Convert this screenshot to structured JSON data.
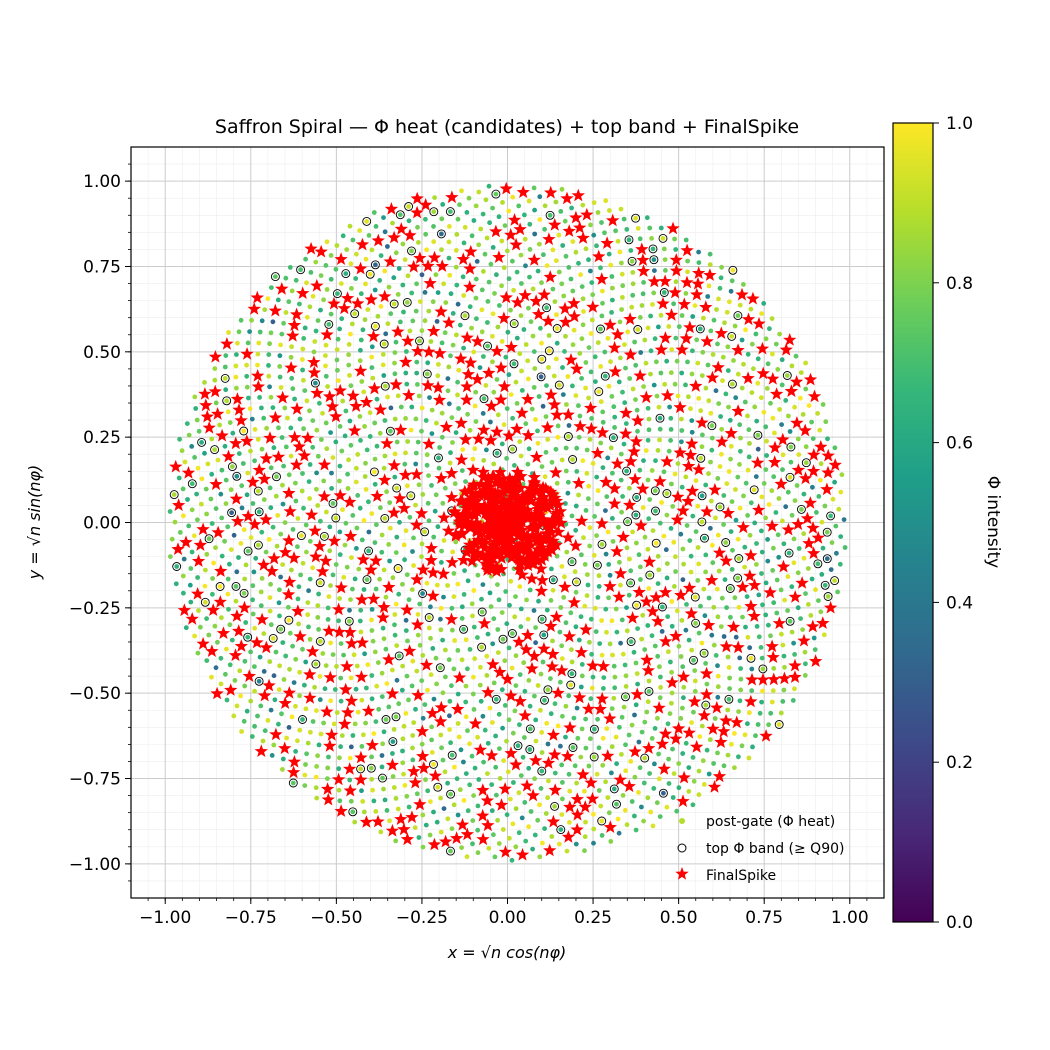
{
  "chart_data": {
    "type": "scatter",
    "title": "Saffron Spiral — Φ heat (candidates) + top band + FinalSpike",
    "xlabel": "x = √n cos(nφ)",
    "ylabel": "y = √n sin(nφ)",
    "xlim": [
      -1.1,
      1.1
    ],
    "ylim": [
      -1.1,
      1.1
    ],
    "xticks": [
      -1.0,
      -0.75,
      -0.5,
      -0.25,
      0.0,
      0.25,
      0.5,
      0.75,
      1.0
    ],
    "yticks": [
      -1.0,
      -0.75,
      -0.5,
      -0.25,
      0.0,
      0.25,
      0.5,
      0.75,
      1.0
    ],
    "xtick_labels": [
      "−1.00",
      "−0.75",
      "−0.50",
      "−0.25",
      "0.00",
      "0.25",
      "0.50",
      "0.75",
      "1.00"
    ],
    "ytick_labels": [
      "−1.00",
      "−0.75",
      "−0.50",
      "−0.25",
      "0.00",
      "0.25",
      "0.50",
      "0.75",
      "1.00"
    ],
    "grid": true,
    "minor_grid": true,
    "legend_position": "lower-right",
    "series": [
      {
        "name": "post-gate (Φ heat)",
        "marker": "dot",
        "colormap": "viridis",
        "approx_points": 3000,
        "generator": "Vogel spiral r = sqrt(i/N), angle = i*golden-angle; color = Φ intensity (mostly 0.6–1.0)"
      },
      {
        "name": "top Φ band (≥ Q90)",
        "marker": "open-circle",
        "edge_color": "#000000",
        "approx_points": 200
      },
      {
        "name": "FinalSpike",
        "marker": "star",
        "color": "#ff0000",
        "approx_points": 1100,
        "note": "dense cluster near origin (|r| < 0.15) plus scattered along spiral arms"
      }
    ],
    "colorbar": {
      "label": "Φ intensity",
      "range": [
        0.0,
        1.0
      ],
      "ticks": [
        0.0,
        0.2,
        0.4,
        0.6,
        0.8,
        1.0
      ],
      "tick_labels": [
        "0.0",
        "0.2",
        "0.4",
        "0.6",
        "0.8",
        "1.0"
      ],
      "colormap": "viridis"
    }
  },
  "colors": {
    "spike": "#ff0000",
    "grid_major": "#cccccc",
    "grid_minor": "#eeeeee",
    "viridis": [
      "#440154",
      "#482878",
      "#3e4989",
      "#31688e",
      "#26828e",
      "#1f9e89",
      "#35b779",
      "#6ece58",
      "#b5de2b",
      "#fde725"
    ]
  }
}
